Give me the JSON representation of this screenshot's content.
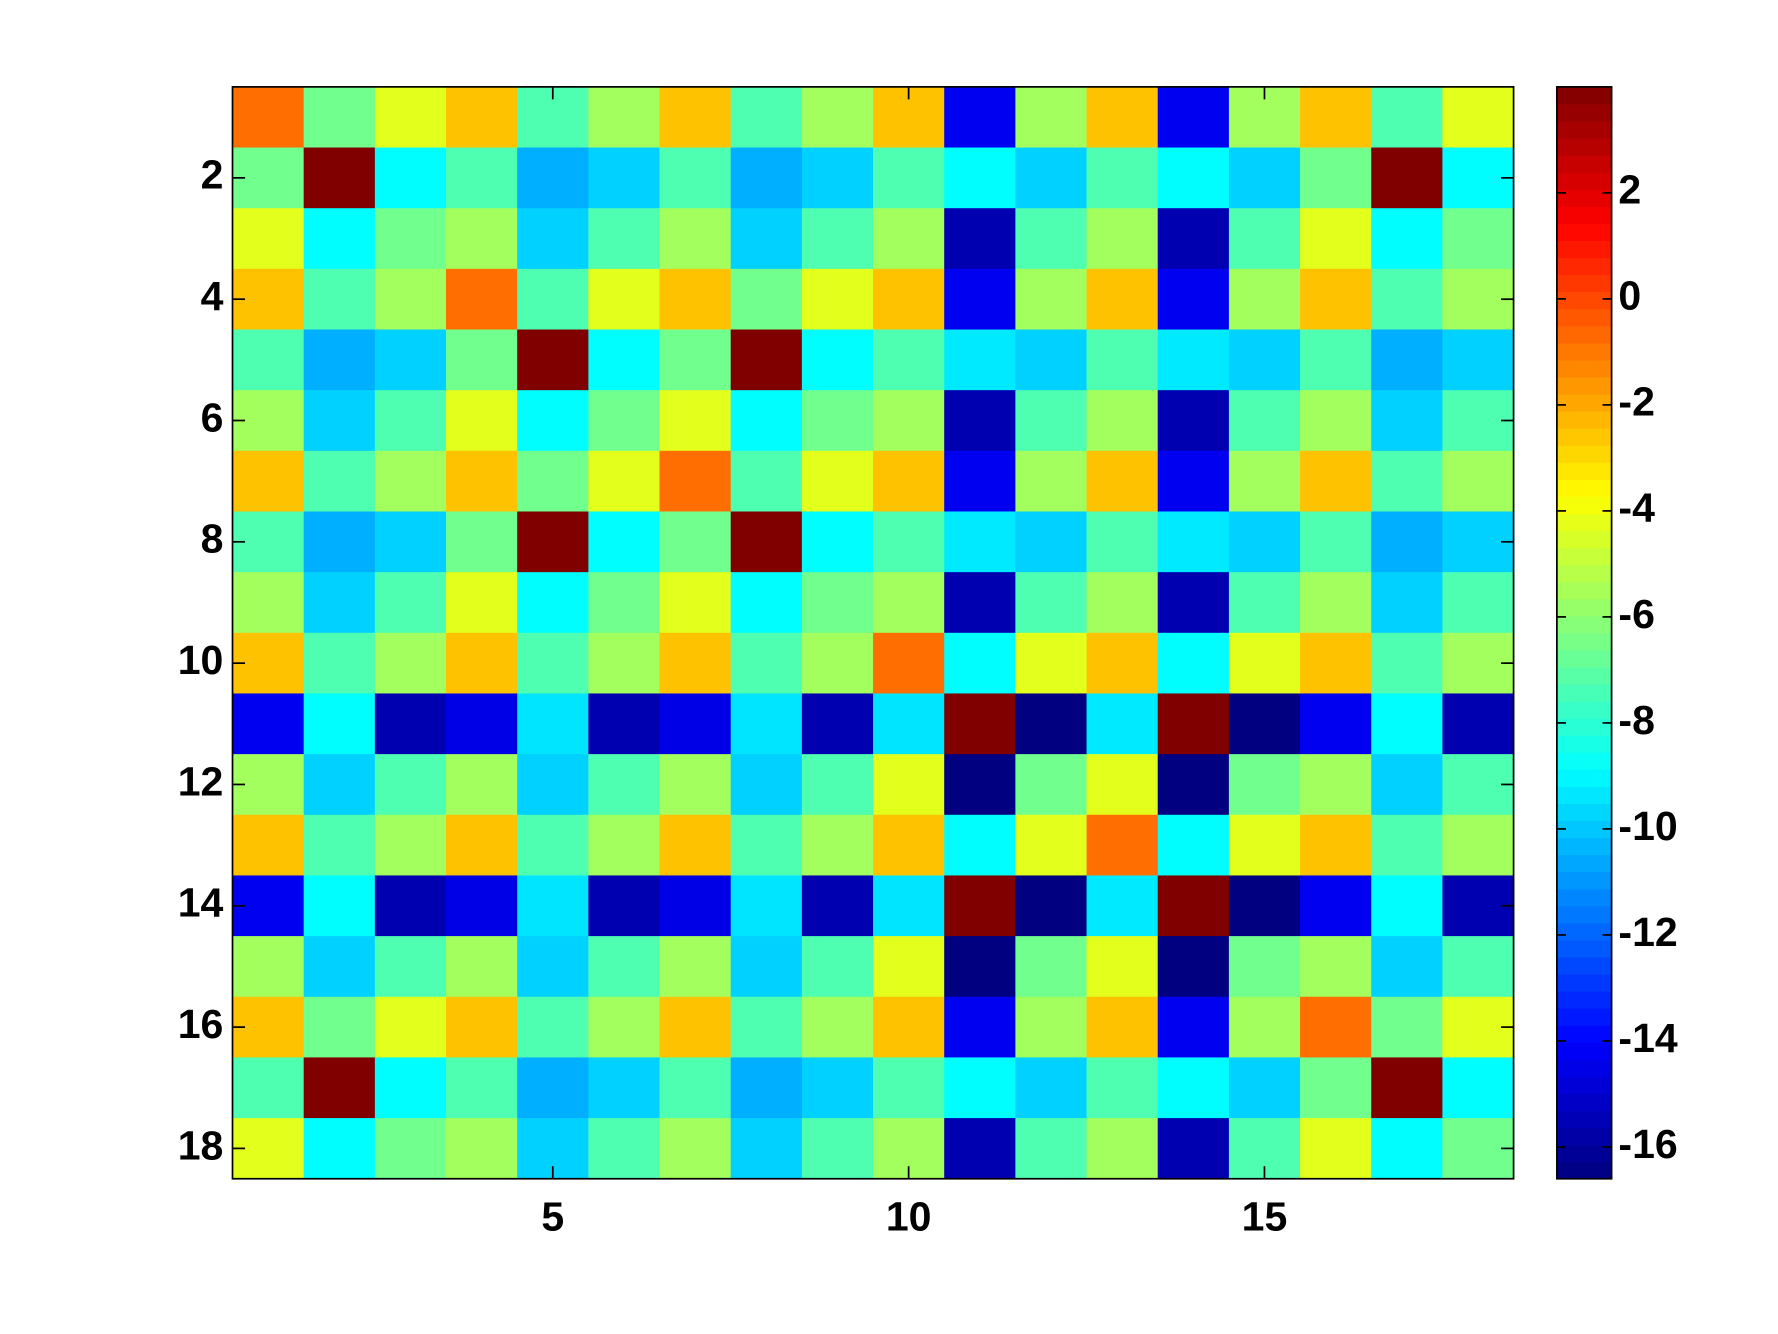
{
  "chart_data": {
    "type": "heatmap",
    "colormap": "jet",
    "xlim": [
      0.5,
      18.5
    ],
    "ylim": [
      0.5,
      18.5
    ],
    "y_reversed": true,
    "xticks": [
      5,
      10,
      15
    ],
    "yticks": [
      2,
      4,
      6,
      8,
      10,
      12,
      14,
      16,
      18
    ],
    "clim": [
      -16.6,
      4
    ],
    "cticks": [
      2,
      0,
      -2,
      -4,
      -6,
      -8,
      -10,
      -12,
      -14,
      -16
    ],
    "z": [
      [
        -0.8,
        -6.6,
        -4.3,
        -2.5,
        -7.3,
        -5.6,
        -2.5,
        -7.3,
        -5.6,
        -2.5,
        -14.3,
        -5.6,
        -2.5,
        -14.3,
        -5.6,
        -2.5,
        -7.3,
        -4.3
      ],
      [
        -6.6,
        4,
        -8.9,
        -7.3,
        -10.5,
        -9.8,
        -7.3,
        -10.5,
        -9.8,
        -7.3,
        -8.9,
        -9.8,
        -7.3,
        -8.9,
        -9.8,
        -6.6,
        4,
        -8.9
      ],
      [
        -4.3,
        -8.9,
        -6.6,
        -5.6,
        -9.8,
        -7.3,
        -5.6,
        -9.8,
        -7.3,
        -5.6,
        -15.6,
        -7.3,
        -5.6,
        -15.6,
        -7.3,
        -4.3,
        -8.9,
        -6.6
      ],
      [
        -2.5,
        -7.3,
        -5.6,
        -0.8,
        -7.3,
        -4.3,
        -2.5,
        -6.6,
        -4.3,
        -2.5,
        -14.3,
        -5.6,
        -2.5,
        -14.3,
        -5.6,
        -2.5,
        -7.3,
        -5.6
      ],
      [
        -7.3,
        -10.5,
        -9.8,
        -6.6,
        4,
        -8.9,
        -6.6,
        4,
        -8.9,
        -7.3,
        -9.3,
        -9.8,
        -7.3,
        -9.3,
        -9.8,
        -7.3,
        -10.5,
        -9.8
      ],
      [
        -5.6,
        -9.8,
        -7.3,
        -4.3,
        -8.9,
        -6.6,
        -4.3,
        -8.9,
        -6.6,
        -5.6,
        -15.6,
        -7.3,
        -5.6,
        -15.6,
        -7.3,
        -5.6,
        -9.8,
        -7.3
      ],
      [
        -2.5,
        -7.3,
        -5.6,
        -2.5,
        -6.6,
        -4.3,
        -0.8,
        -7.3,
        -4.3,
        -2.5,
        -14.3,
        -5.6,
        -2.5,
        -14.3,
        -5.6,
        -2.5,
        -7.3,
        -5.6
      ],
      [
        -7.3,
        -10.5,
        -9.8,
        -6.6,
        4,
        -8.9,
        -6.6,
        4,
        -8.9,
        -7.3,
        -9.3,
        -9.8,
        -7.3,
        -9.3,
        -9.8,
        -7.3,
        -10.5,
        -9.8
      ],
      [
        -5.6,
        -9.8,
        -7.3,
        -4.3,
        -8.9,
        -6.6,
        -4.3,
        -8.9,
        -6.6,
        -5.6,
        -15.6,
        -7.3,
        -5.6,
        -15.6,
        -7.3,
        -5.6,
        -9.8,
        -7.3
      ],
      [
        -2.5,
        -7.3,
        -5.6,
        -2.5,
        -7.3,
        -5.6,
        -2.5,
        -7.3,
        -5.6,
        -0.8,
        -8.9,
        -4.3,
        -2.5,
        -8.9,
        -4.3,
        -2.5,
        -7.3,
        -5.6
      ],
      [
        -14.3,
        -8.9,
        -15.6,
        -14.5,
        -9.4,
        -15.6,
        -14.5,
        -9.4,
        -15.6,
        -9.4,
        4,
        -16.6,
        -9.3,
        4,
        -16.6,
        -14.3,
        -8.9,
        -15.6
      ],
      [
        -5.6,
        -9.8,
        -7.3,
        -5.6,
        -9.8,
        -7.3,
        -5.6,
        -9.8,
        -7.3,
        -4.3,
        -16.6,
        -6.6,
        -4.3,
        -16.6,
        -6.6,
        -5.6,
        -9.8,
        -7.3
      ],
      [
        -2.5,
        -7.3,
        -5.6,
        -2.5,
        -7.3,
        -5.6,
        -2.5,
        -7.3,
        -5.6,
        -2.5,
        -8.9,
        -4.3,
        -0.8,
        -8.9,
        -4.3,
        -2.5,
        -7.3,
        -5.6
      ],
      [
        -14.3,
        -8.9,
        -15.6,
        -14.5,
        -9.4,
        -15.6,
        -14.5,
        -9.4,
        -15.6,
        -9.4,
        4,
        -16.6,
        -9.3,
        4,
        -16.6,
        -14.3,
        -8.9,
        -15.6
      ],
      [
        -5.6,
        -9.8,
        -7.3,
        -5.6,
        -9.8,
        -7.3,
        -5.6,
        -9.8,
        -7.3,
        -4.3,
        -16.6,
        -6.6,
        -4.3,
        -16.6,
        -6.6,
        -5.6,
        -9.8,
        -7.3
      ],
      [
        -2.5,
        -6.6,
        -4.3,
        -2.5,
        -7.3,
        -5.6,
        -2.5,
        -7.3,
        -5.6,
        -2.5,
        -14.3,
        -5.6,
        -2.5,
        -14.3,
        -5.6,
        -0.8,
        -6.6,
        -4.3
      ],
      [
        -7.3,
        4,
        -8.9,
        -7.3,
        -10.5,
        -9.8,
        -7.3,
        -10.5,
        -9.8,
        -7.3,
        -8.9,
        -9.8,
        -7.3,
        -8.9,
        -9.8,
        -6.6,
        4,
        -8.9
      ],
      [
        -4.3,
        -8.9,
        -6.6,
        -5.6,
        -9.8,
        -7.3,
        -5.6,
        -9.8,
        -7.3,
        -5.6,
        -15.6,
        -7.3,
        -5.6,
        -15.6,
        -7.3,
        -4.3,
        -8.9,
        -6.6
      ]
    ]
  }
}
